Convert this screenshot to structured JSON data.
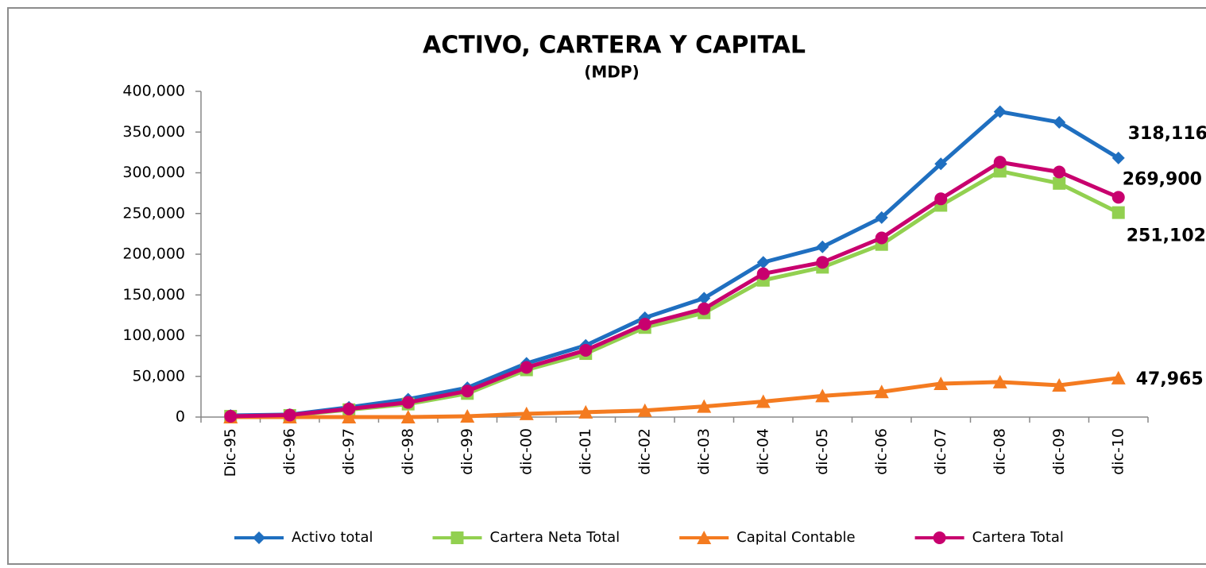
{
  "chart_data": {
    "type": "line",
    "title": "ACTIVO, CARTERA Y CAPITAL",
    "subtitle": "(MDP)",
    "categories": [
      "Dic-95",
      "dic-96",
      "dic-97",
      "dic-98",
      "dic-99",
      "dic-00",
      "dic-01",
      "dic-02",
      "dic-03",
      "dic-04",
      "dic-05",
      "dic-06",
      "dic-07",
      "dic-08",
      "dic-09",
      "dic-10"
    ],
    "ylim": [
      0,
      400000
    ],
    "yticks": [
      0,
      {
        "value": 50000,
        "label": "50,000"
      },
      {
        "value": 100000,
        "label": "100,000"
      },
      {
        "value": 150000,
        "label": "150,000"
      },
      {
        "value": 200000,
        "label": "200,000"
      },
      {
        "value": 250000,
        "label": "250,000"
      },
      {
        "value": 300000,
        "label": "300,000"
      },
      {
        "value": 350000,
        "label": "350,000"
      },
      {
        "value": 400000,
        "label": "400,000"
      }
    ],
    "grid": false,
    "legend": "bottom",
    "series": [
      {
        "name": "Activo total",
        "color": "#1f6fc0",
        "marker": "diamond",
        "values": [
          2000,
          3000,
          12000,
          22000,
          36000,
          66000,
          88000,
          122000,
          146000,
          190000,
          209000,
          245000,
          311000,
          375000,
          362000,
          318116
        ],
        "value_labels": [
          null,
          null,
          null,
          null,
          null,
          null,
          null,
          null,
          null,
          null,
          null,
          null,
          null,
          null,
          null,
          "318,116"
        ]
      },
      {
        "name": "Cartera Neta Total",
        "color": "#92d050",
        "marker": "square",
        "values": [
          1000,
          2000,
          9000,
          16000,
          29000,
          58000,
          78000,
          110000,
          128000,
          168000,
          184000,
          212000,
          260000,
          302000,
          287000,
          251102
        ],
        "value_labels": [
          null,
          null,
          null,
          null,
          null,
          null,
          null,
          null,
          null,
          null,
          null,
          null,
          null,
          null,
          null,
          "251,102"
        ]
      },
      {
        "name": "Capital Contable",
        "color": "#f47b20",
        "marker": "triangle",
        "values": [
          0,
          0,
          0,
          0,
          1000,
          4000,
          6000,
          8000,
          13000,
          19000,
          26000,
          31000,
          41000,
          43000,
          39000,
          47965
        ],
        "value_labels": [
          null,
          null,
          null,
          null,
          null,
          null,
          null,
          null,
          null,
          null,
          null,
          null,
          null,
          null,
          null,
          "47,965"
        ]
      },
      {
        "name": "Cartera Total",
        "color": "#c8006e",
        "marker": "circle",
        "values": [
          1000,
          2500,
          10000,
          18000,
          32000,
          61000,
          82000,
          114000,
          133000,
          176000,
          190000,
          220000,
          268000,
          313000,
          301000,
          269900
        ],
        "value_labels": [
          null,
          null,
          null,
          null,
          null,
          null,
          null,
          null,
          null,
          null,
          null,
          null,
          null,
          null,
          null,
          "269,900"
        ]
      }
    ]
  }
}
